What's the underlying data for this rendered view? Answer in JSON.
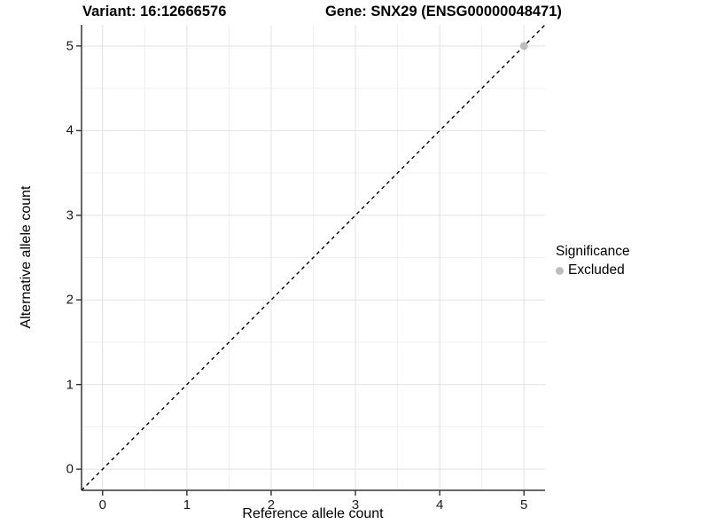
{
  "titles": {
    "variant": "Variant: 16:12666576",
    "gene": "Gene: SNX29 (ENSG00000048471)"
  },
  "chart_data": {
    "type": "scatter",
    "xlabel": "Reference allele count",
    "ylabel": "Alternative allele count",
    "xlim": [
      -0.25,
      5.25
    ],
    "ylim": [
      -0.25,
      5.25
    ],
    "x_ticks": [
      0,
      1,
      2,
      3,
      4,
      5
    ],
    "y_ticks": [
      0,
      1,
      2,
      3,
      4,
      5
    ],
    "x_minor_ticks": [
      0.5,
      1.5,
      2.5,
      3.5,
      4.5
    ],
    "y_minor_ticks": [
      0.5,
      1.5,
      2.5,
      3.5,
      4.5
    ],
    "grid": true,
    "identity_line": {
      "slope": 1,
      "intercept": 0,
      "style": "dashed",
      "color": "#000000"
    },
    "series": [
      {
        "name": "Excluded",
        "color": "#bebebe",
        "points": [
          {
            "x": 5,
            "y": 5
          }
        ]
      }
    ],
    "legend": {
      "title": "Significance",
      "position": "right",
      "items": [
        {
          "label": "Excluded",
          "color": "#bebebe"
        }
      ]
    }
  },
  "colors": {
    "background": "#ffffff",
    "grid_major": "#e2e2e2",
    "grid_minor": "#f0f0f0",
    "axis": "#333333",
    "dashed_line": "#000000",
    "point": "#bebebe",
    "text": "#000000"
  }
}
